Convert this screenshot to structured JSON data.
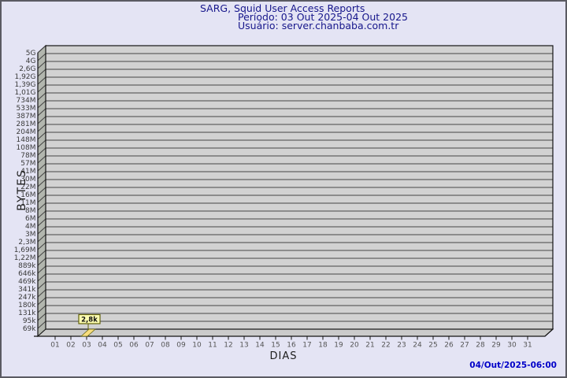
{
  "header": {
    "title": "SARG, Squid User Access Reports",
    "period": "Período: 03 Out 2025-04 Out 2025",
    "user": "Usuário: server.chanbaba.com.tr"
  },
  "footer": {
    "timestamp": "04/Out/2025-06:00"
  },
  "chart_data": {
    "type": "line",
    "title": "SARG, Squid User Access Reports",
    "subtitle": [
      "Período: 03 Out 2025-04 Out 2025",
      "Usuário: server.chanbaba.com.tr"
    ],
    "xlabel": "DIAS",
    "ylabel": "BYTES",
    "x_ticks": [
      "01",
      "02",
      "03",
      "04",
      "05",
      "06",
      "07",
      "08",
      "09",
      "10",
      "11",
      "12",
      "13",
      "14",
      "15",
      "16",
      "17",
      "18",
      "19",
      "20",
      "21",
      "22",
      "23",
      "24",
      "25",
      "26",
      "27",
      "28",
      "29",
      "30",
      "31"
    ],
    "y_ticks_top_to_bottom": [
      "5G",
      "4G",
      "2,6G",
      "1,92G",
      "1,39G",
      "1,01G",
      "734M",
      "533M",
      "387M",
      "281M",
      "204M",
      "148M",
      "108M",
      "78M",
      "57M",
      "41M",
      "30M",
      "22M",
      "16M",
      "11M",
      "8M",
      "6M",
      "4M",
      "3M",
      "2,3M",
      "1,69M",
      "1,22M",
      "889k",
      "646k",
      "469k",
      "341k",
      "247k",
      "180k",
      "131k",
      "95k",
      "69k"
    ],
    "y_axis_min_label": "69k",
    "points": [
      {
        "x": "03",
        "value_label": "2,8k"
      }
    ],
    "grid": true,
    "legend": false,
    "style": "3d-framed plot, single flagged data point below axis minimum drawn at floor"
  },
  "colors": {
    "background": "#e4e4f4",
    "border": "#5a5a62",
    "title_text": "#16168b",
    "timestamp_text": "#0000c8",
    "plot_face": "#d2d2d2",
    "plot_wall": "#b2b6ae",
    "plot_floor": "#cbcbcb",
    "grid_line": "#454545",
    "axis_line": "#141414",
    "y_tick_text": "#3a3a3a",
    "x_tick_text": "#555555",
    "flag_fill": "#ffffb2",
    "flag_border": "#62620a",
    "flag_wedge": "#f8dd7e",
    "flag_text": "#111111"
  }
}
